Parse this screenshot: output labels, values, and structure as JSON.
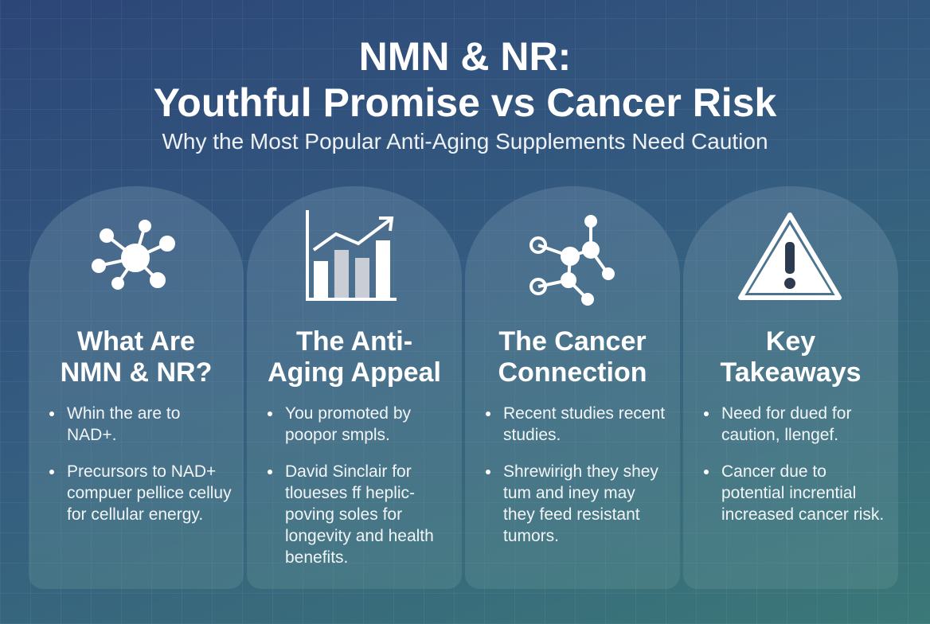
{
  "header": {
    "title_lines": [
      "NMN & NR:",
      "Youthful Promise vs Cancer Risk"
    ],
    "subtitle": "Why the Most Popular Anti-Aging Supplements Need Caution"
  },
  "cards": [
    {
      "heading_lines": [
        "What Are",
        "NMN & NR?"
      ],
      "bullets": [
        "Whin the are to NAD+.",
        "Precursors to NAD+ compuer pellice celluy for cellular energy."
      ]
    },
    {
      "heading_lines": [
        "The Anti-",
        "Aging Appeal"
      ],
      "bullets": [
        "You promoted by poopor smpls.",
        "David Sinclair for tloueses ff heplic-poving soles for longevity and health benefits."
      ]
    },
    {
      "heading_lines": [
        "The Cancer",
        "Connection"
      ],
      "bullets": [
        "Recent studies recent studies.",
        "Shrewirigh they shey tum and iney may they feed resistant tumors."
      ]
    },
    {
      "heading_lines": [
        "Key",
        "Takeaways"
      ],
      "bullets": [
        "Need for dued for caution, llengef.",
        "Cancer due to potential incrential increased cancer risk."
      ]
    }
  ]
}
